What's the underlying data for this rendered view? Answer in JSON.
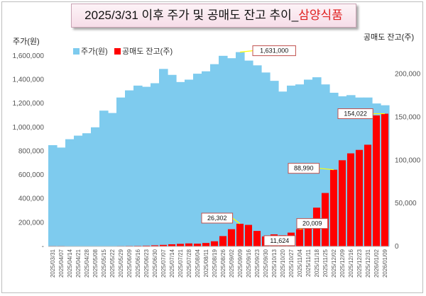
{
  "title": {
    "main": "2025/3/31 이후 주가 및 공매도 잔고 추이_",
    "company": "삼양식품"
  },
  "chart_data": {
    "type": "bar",
    "title": "2025/3/31 이후 주가 및 공매도 잔고 추이_삼양식품",
    "y_left_label": "주가(원)",
    "y_right_label": "공매도 잔고(주)",
    "y_left_range": [
      0,
      1700000
    ],
    "y_right_range": [
      0,
      235000
    ],
    "y_left_ticks": [
      "-",
      "200,000",
      "400,000",
      "600,000",
      "800,000",
      "1,000,000",
      "1,200,000",
      "1,400,000",
      "1,600,000"
    ],
    "y_right_ticks": [
      "0",
      "50,000",
      "100,000",
      "150,000",
      "200,000"
    ],
    "legend": {
      "placement": "top-left"
    },
    "x_labels": [
      "2025/03/31",
      "2025/04/07",
      "2025/04/14",
      "2025/04/21",
      "2025/04/28",
      "2025/05/08",
      "2025/05/15",
      "2025/05/22",
      "2025/05/29",
      "2025/06/09",
      "2025/06/16",
      "2025/06/23",
      "2025/06/30",
      "2025/07/07",
      "2025/07/14",
      "2025/07/21",
      "2025/07/28",
      "2025/08/04",
      "2025/08/11",
      "2025/08/19",
      "2025/08/26",
      "2025/09/02",
      "2025/09/09",
      "2025/09/16",
      "2025/09/23",
      "2025/09/30",
      "2025/10/13",
      "2025/10/20",
      "2025/10/27",
      "2025/11/04",
      "2025/11/11",
      "2025/11/18",
      "2025/11/25",
      "2025/12/02",
      "2025/12/09",
      "2025/12/16",
      "2025/12/23",
      "2025/12/31",
      "2026/01/02",
      "2026/01/09"
    ],
    "series": [
      {
        "name": "주가(원)",
        "color": "#7ecbee",
        "axis": "left",
        "values": [
          850000,
          830000,
          900000,
          930000,
          950000,
          1000000,
          1140000,
          1120000,
          1250000,
          1310000,
          1350000,
          1340000,
          1370000,
          1490000,
          1440000,
          1380000,
          1400000,
          1450000,
          1470000,
          1530000,
          1600000,
          1580000,
          1631000,
          1560000,
          1520000,
          1460000,
          1390000,
          1300000,
          1350000,
          1360000,
          1400000,
          1420000,
          1360000,
          1290000,
          1260000,
          1270000,
          1250000,
          1250000,
          1200000,
          1185000
        ]
      },
      {
        "name": "공매도 잔고(주)",
        "color": "#ff0000",
        "axis": "right",
        "values": [
          500,
          500,
          400,
          400,
          400,
          400,
          400,
          400,
          500,
          600,
          700,
          900,
          1300,
          1800,
          2500,
          3000,
          3500,
          3200,
          4000,
          6000,
          12000,
          20000,
          26302,
          25000,
          18000,
          11624,
          14000,
          13000,
          16000,
          20009,
          24000,
          45000,
          62000,
          88990,
          100000,
          108000,
          112000,
          118000,
          152000,
          154022
        ]
      }
    ],
    "annotations": [
      {
        "label": "1,631,000",
        "series": 0,
        "index": 22
      },
      {
        "label": "154,022",
        "series": 1,
        "index": 39
      },
      {
        "label": "88,990",
        "series": 1,
        "index": 33
      },
      {
        "label": "26,302",
        "series": 1,
        "index": 22
      },
      {
        "label": "11,624",
        "series": 1,
        "index": 25
      },
      {
        "label": "20,009",
        "series": 1,
        "index": 29
      }
    ]
  }
}
